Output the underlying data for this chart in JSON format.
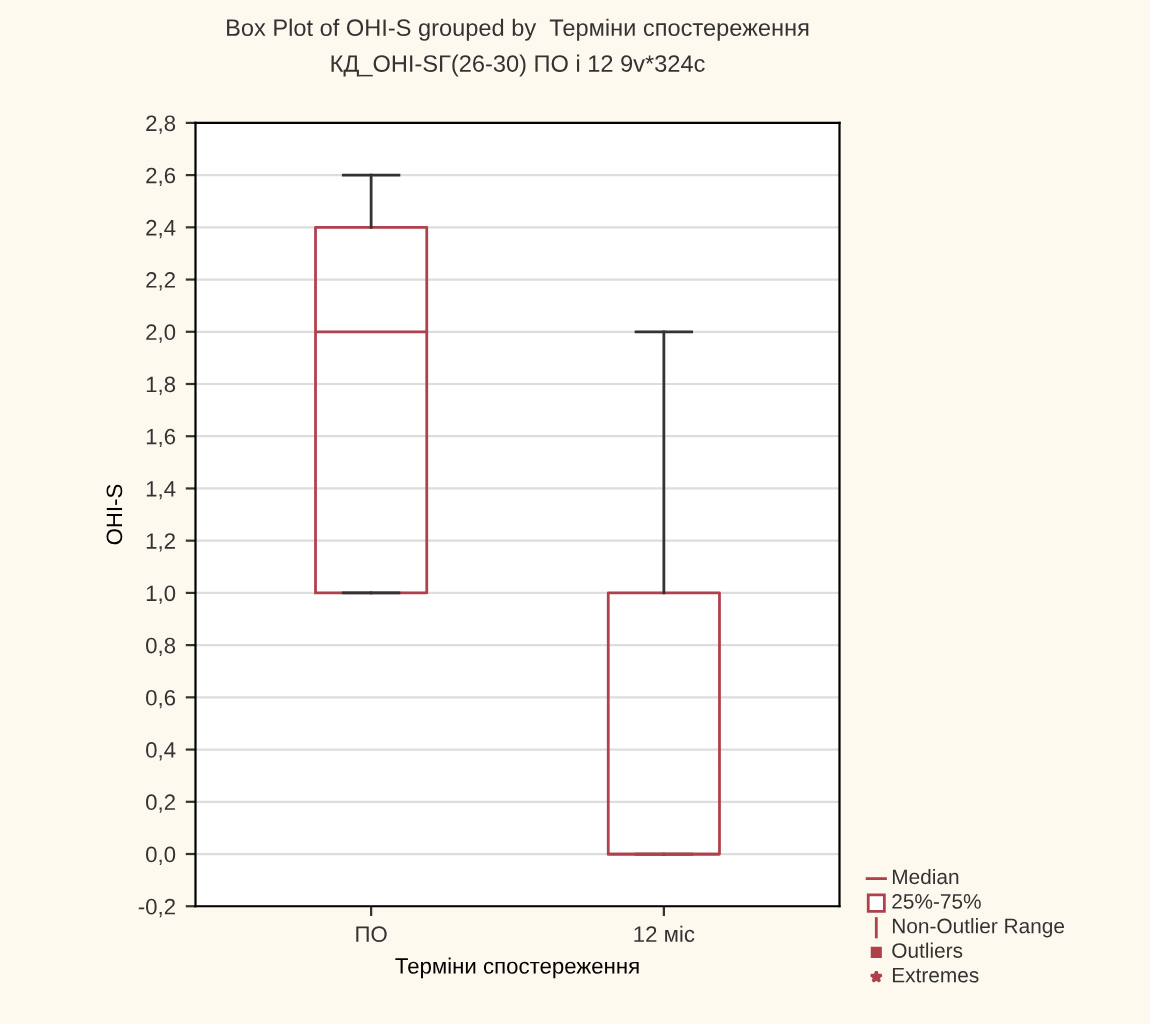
{
  "chart_data": {
    "type": "box",
    "title": "Box Plot of OHI-S grouped by  Терміни спостереження",
    "subtitle": "КД_OHI-SГ(26-30) ПО і 12 9v*324c",
    "xlabel": "Терміни спостереження",
    "ylabel": "OHI-S",
    "categories": [
      "ПО",
      "12 міс"
    ],
    "boxes": [
      {
        "low": 1.0,
        "q1": 1.0,
        "median": 2.0,
        "q3": 2.4,
        "high": 2.6
      },
      {
        "low": 0.0,
        "q1": 0.0,
        "median": 0.0,
        "q3": 1.0,
        "high": 2.0
      }
    ],
    "color": "#b0404c",
    "ylim": [
      -0.2,
      2.8
    ],
    "yticks": [
      {
        "value": -0.2,
        "label": "-0,2"
      },
      {
        "value": 0.0,
        "label": "0,0"
      },
      {
        "value": 0.2,
        "label": "0,2"
      },
      {
        "value": 0.4,
        "label": "0,4"
      },
      {
        "value": 0.6,
        "label": "0,6"
      },
      {
        "value": 0.8,
        "label": "0,8"
      },
      {
        "value": 1.0,
        "label": "1,0"
      },
      {
        "value": 1.2,
        "label": "1,2"
      },
      {
        "value": 1.4,
        "label": "1,4"
      },
      {
        "value": 1.6,
        "label": "1,6"
      },
      {
        "value": 1.8,
        "label": "1,8"
      },
      {
        "value": 2.0,
        "label": "2,0"
      },
      {
        "value": 2.2,
        "label": "2,2"
      },
      {
        "value": 2.4,
        "label": "2,4"
      },
      {
        "value": 2.6,
        "label": "2,6"
      },
      {
        "value": 2.8,
        "label": "2,8"
      }
    ],
    "grid": "y",
    "annotations": [
      "Median",
      "25%-75%",
      "Non-Outlier Range",
      "Outliers",
      "Extremes"
    ]
  }
}
